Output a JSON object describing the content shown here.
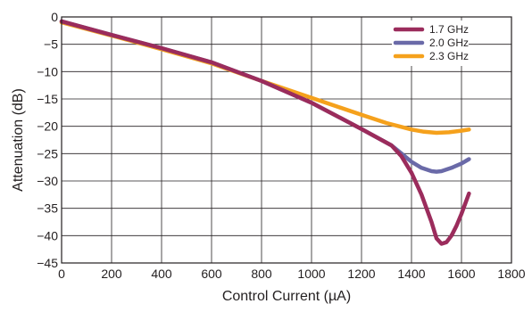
{
  "chart_data": {
    "type": "line",
    "xlabel": "Control Current (µA)",
    "ylabel": "Attenuation (dB)",
    "xlim": [
      0,
      1800
    ],
    "ylim": [
      -45,
      0
    ],
    "x_ticks": [
      0,
      200,
      400,
      600,
      800,
      1000,
      1200,
      1400,
      1600,
      1800
    ],
    "y_ticks": [
      0,
      -5,
      -10,
      -15,
      -20,
      -25,
      -30,
      -35,
      -40,
      -45
    ],
    "x_tick_labels": [
      "0",
      "200",
      "400",
      "600",
      "800",
      "1000",
      "1200",
      "1400",
      "1600",
      "1800"
    ],
    "y_tick_labels": [
      "0",
      "−5",
      "−10",
      "−15",
      "−20",
      "−25",
      "−30",
      "−35",
      "−40",
      "−45"
    ],
    "grid": true,
    "legend_position": "top-right",
    "series": [
      {
        "name": "1.7 GHz",
        "color": "#9b2c5c",
        "x": [
          0,
          200,
          400,
          600,
          800,
          1000,
          1200,
          1320,
          1360,
          1400,
          1440,
          1480,
          1500,
          1520,
          1540,
          1560,
          1580,
          1600,
          1630
        ],
        "y": [
          -0.8,
          -3.3,
          -5.7,
          -8.3,
          -11.7,
          -15.7,
          -20.5,
          -23.5,
          -25.5,
          -28.5,
          -32.5,
          -37.5,
          -40.5,
          -41.5,
          -41.2,
          -40,
          -38.2,
          -36,
          -32.3
        ]
      },
      {
        "name": "2.0 GHz",
        "color": "#6a6aa8",
        "x": [
          0,
          200,
          400,
          600,
          800,
          1000,
          1200,
          1320,
          1360,
          1400,
          1440,
          1480,
          1500,
          1520,
          1560,
          1600,
          1630
        ],
        "y": [
          -0.8,
          -3.3,
          -5.7,
          -8.3,
          -11.7,
          -15.7,
          -20.5,
          -23.5,
          -25,
          -26.5,
          -27.6,
          -28.2,
          -28.3,
          -28.2,
          -27.6,
          -26.8,
          -26
        ]
      },
      {
        "name": "2.3 GHz",
        "color": "#f5a11c",
        "x": [
          0,
          200,
          400,
          600,
          800,
          1000,
          1200,
          1300,
          1400,
          1450,
          1500,
          1550,
          1600,
          1630
        ],
        "y": [
          -1,
          -3.4,
          -5.9,
          -8.5,
          -11.7,
          -14.8,
          -17.9,
          -19.4,
          -20.6,
          -21.0,
          -21.2,
          -21.1,
          -20.8,
          -20.6
        ]
      }
    ]
  }
}
